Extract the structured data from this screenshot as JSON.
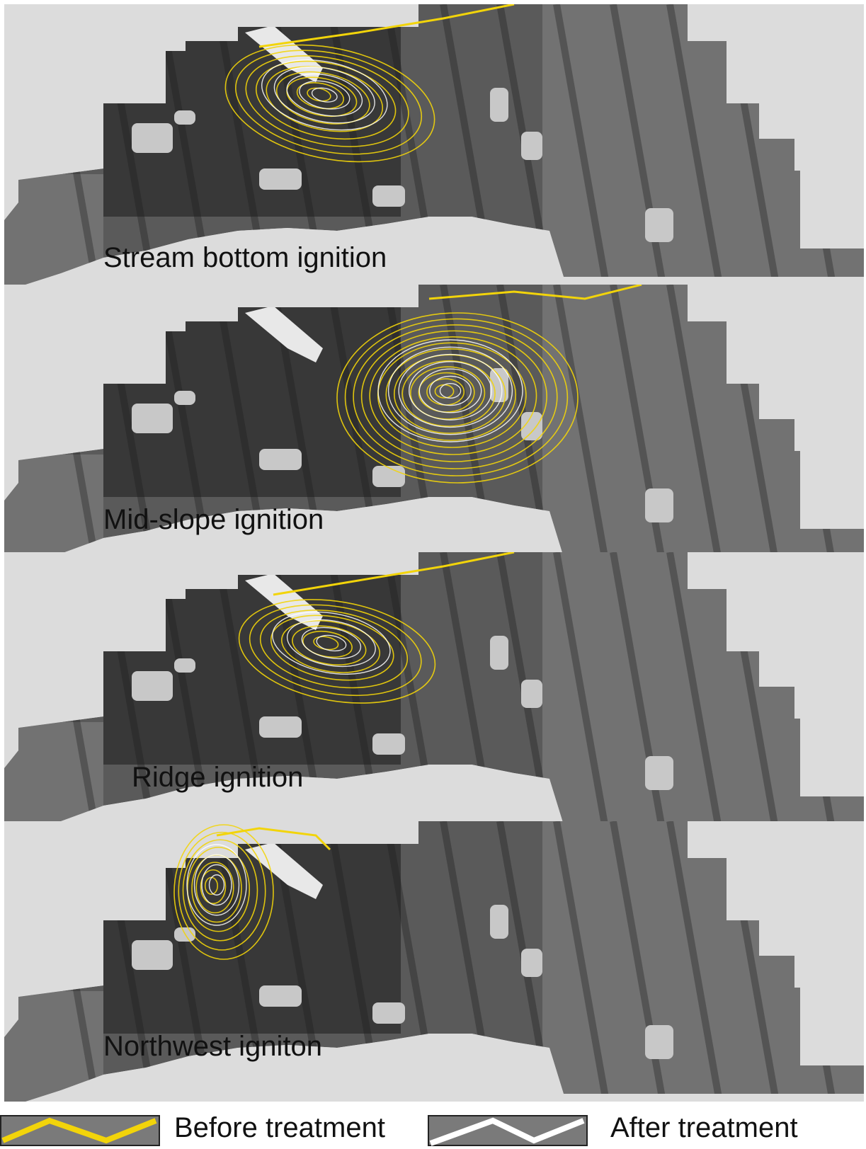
{
  "panels": [
    {
      "label": "Stream bottom ignition",
      "ignition": "stream-bottom"
    },
    {
      "label": "Mid-slope ignition",
      "ignition": "mid-slope"
    },
    {
      "label": "Ridge ignition",
      "ignition": "ridge"
    },
    {
      "label": "Northwest igniton",
      "ignition": "northwest"
    }
  ],
  "legend": {
    "before_label": "Before treatment",
    "after_label": "After treatment"
  },
  "colors": {
    "background": "#dcdcdc",
    "terrain_dark": "#2a2a2a",
    "terrain_mid": "#5a5a5a",
    "terrain_light": "#8a8a8a",
    "treatment_patch": "#c8c8c8",
    "before_contour": "#f2d40a",
    "after_contour": "#ffffff"
  }
}
